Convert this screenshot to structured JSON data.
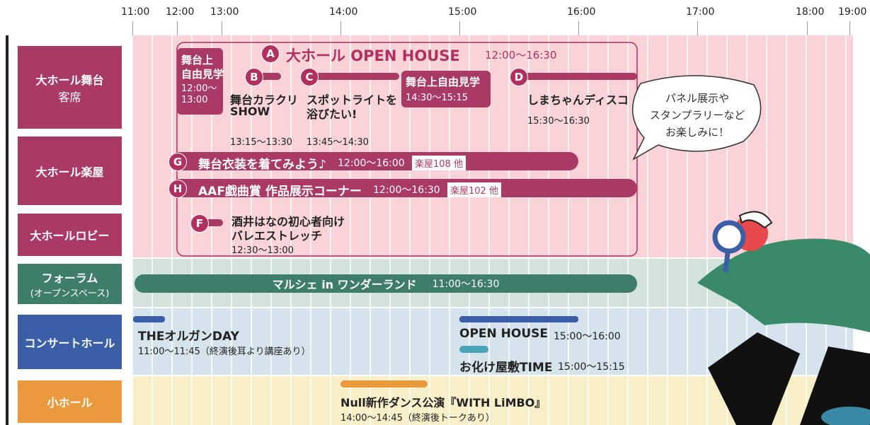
{
  "time_axis": [
    "11:00",
    "12:00",
    "13:00",
    "14:00",
    "15:00",
    "16:00",
    "17:00",
    "18:00",
    "19:00"
  ],
  "rows": [
    {
      "lines": [
        "大ホール舞台",
        "客席"
      ]
    },
    {
      "lines": [
        "大ホール楽屋"
      ]
    },
    {
      "lines": [
        "大ホールロビー"
      ]
    },
    {
      "lines": [
        "フォーラム",
        "(オープンスペース)"
      ]
    },
    {
      "lines": [
        "コンサートホール"
      ]
    },
    {
      "lines": [
        "小ホール"
      ]
    }
  ],
  "open_house": {
    "letter": "A",
    "title": "大ホール OPEN HOUSE",
    "time": "12:00〜16:30"
  },
  "stage_tours": [
    {
      "lines": [
        "舞台上",
        "自由見学",
        "12:00〜",
        "13:00"
      ]
    },
    {
      "lines": [
        "舞台上自由見学",
        "14:30〜15:15"
      ]
    }
  ],
  "stage_events": [
    {
      "letter": "B",
      "lines": [
        "舞台カラクリ",
        "SHOW"
      ],
      "time": "13:15〜13:30"
    },
    {
      "letter": "C",
      "lines": [
        "スポットライトを",
        "浴びたい!"
      ],
      "time": "13:45〜14:30"
    },
    {
      "letter": "D",
      "lines": [
        "しまちゃんディスコ"
      ],
      "time": "15:30〜16:30"
    }
  ],
  "backstage_events": [
    {
      "letter": "G",
      "title": "舞台衣装を着てみよう♪",
      "time": "12:00〜16:00",
      "place": "楽屋108 他"
    },
    {
      "letter": "H",
      "title": "AAF戯曲賞 作品展示コーナー",
      "time": "12:00〜16:30",
      "place": "楽屋102 他"
    }
  ],
  "lobby_event": {
    "letter": "F",
    "lines": [
      "酒井はなの初心者向け",
      "バレエストレッチ"
    ],
    "time": "12:30〜13:00"
  },
  "forum_event": {
    "title": "マルシェ in ワンダーランド",
    "time": "11:00〜16:30"
  },
  "concert_events": [
    {
      "title": "THEオルガンDAY",
      "time": "11:00〜11:45（終演後耳より講座あり）"
    },
    {
      "title": "OPEN HOUSE",
      "time": "15:00〜16:00"
    },
    {
      "title": "お化け屋敷TIME",
      "time": "15:00〜15:15"
    }
  ],
  "small_hall_event": {
    "title": "Null新作ダンス公演『WITH LiMBO』",
    "time": "14:00〜14:45（終演後トークあり）"
  },
  "bubble": {
    "lines": [
      "パネル展示や",
      "スタンプラリーなど",
      "お楽しみに！"
    ]
  }
}
